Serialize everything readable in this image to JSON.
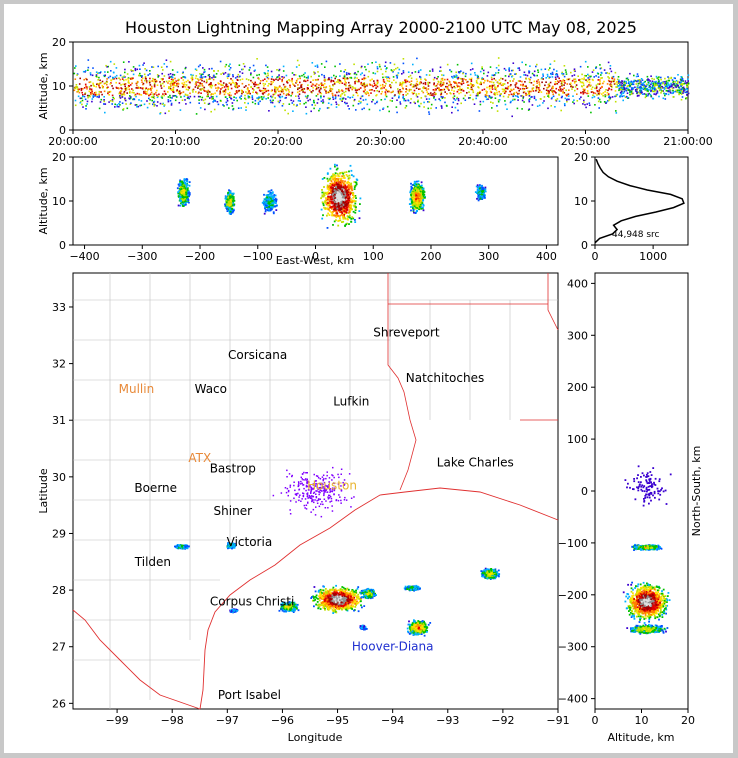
{
  "title": "Houston Lightning Mapping Array 2000-2100 UTC May 08, 2025",
  "chart_data": [
    {
      "type": "heatmap",
      "panel": "altitude-time",
      "ylabel": "Altitude, km",
      "ylim": [
        0,
        20
      ],
      "yticks": [
        "0",
        "10",
        "20"
      ],
      "xticks": [
        "20:00:00",
        "20:10:00",
        "20:20:00",
        "20:30:00",
        "20:40:00",
        "20:50:00",
        "21:00:00"
      ],
      "xlim_minutes": [
        0,
        60
      ],
      "activity": [
        {
          "t_start": 0,
          "t_end": 53,
          "z_low": 4,
          "z_high": 16,
          "core_low": 8,
          "core_high": 12
        },
        {
          "t_start": 53,
          "t_end": 60,
          "z_low": 7,
          "z_high": 13,
          "core_low": 0,
          "core_high": 0
        }
      ]
    },
    {
      "type": "heatmap",
      "panel": "altitude-eastwest",
      "xlabel": "East-West, km",
      "ylabel": "Altitude, km",
      "xlim": [
        -420,
        420
      ],
      "ylim": [
        0,
        20
      ],
      "xticks": [
        "−400",
        "−300",
        "−200",
        "−100",
        "0",
        "100",
        "200",
        "300",
        "400"
      ],
      "yticks": [
        "0",
        "10",
        "20"
      ],
      "cells": [
        {
          "x": -230,
          "z": 12,
          "w": 12,
          "h": 4,
          "level": 2
        },
        {
          "x": -150,
          "z": 10,
          "w": 10,
          "h": 3,
          "level": 2
        },
        {
          "x": -80,
          "z": 10,
          "w": 14,
          "h": 3,
          "level": 1
        },
        {
          "x": 40,
          "z": 11,
          "w": 40,
          "h": 8,
          "level": 5
        },
        {
          "x": 175,
          "z": 11,
          "w": 16,
          "h": 4,
          "level": 3
        },
        {
          "x": 285,
          "z": 12,
          "w": 10,
          "h": 2,
          "level": 1
        }
      ]
    },
    {
      "type": "line",
      "panel": "altitude-histogram",
      "xlim": [
        0,
        1600
      ],
      "ylim": [
        0,
        20
      ],
      "xticks": [
        "0",
        "1000"
      ],
      "yticks": [
        "0",
        "10",
        "20"
      ],
      "annotation": "44,948 src",
      "points": [
        [
          0,
          0.5
        ],
        [
          80,
          1.5
        ],
        [
          300,
          2.5
        ],
        [
          380,
          3.5
        ],
        [
          320,
          4.5
        ],
        [
          450,
          5.5
        ],
        [
          700,
          6.5
        ],
        [
          1050,
          7.5
        ],
        [
          1350,
          8.5
        ],
        [
          1530,
          9.5
        ],
        [
          1500,
          10.5
        ],
        [
          1300,
          11.5
        ],
        [
          900,
          12.5
        ],
        [
          600,
          13.5
        ],
        [
          380,
          14.5
        ],
        [
          230,
          15.5
        ],
        [
          140,
          16.5
        ],
        [
          90,
          17.5
        ],
        [
          50,
          18.5
        ],
        [
          20,
          19.5
        ]
      ]
    },
    {
      "type": "map",
      "panel": "plan-view",
      "xlabel": "Longitude",
      "ylabel": "Latitude",
      "xlim": [
        -99.8,
        -91
      ],
      "ylim": [
        25.9,
        33.6
      ],
      "xticks": [
        "−99",
        "−98",
        "−97",
        "−96",
        "−95",
        "−94",
        "−93",
        "−92",
        "−91"
      ],
      "yticks": [
        "26",
        "27",
        "28",
        "29",
        "30",
        "31",
        "32",
        "33"
      ],
      "places": [
        {
          "name": "Shreveport",
          "lon": -93.75,
          "lat": 32.55,
          "color": "#000000"
        },
        {
          "name": "Corsicana",
          "lon": -96.45,
          "lat": 32.15,
          "color": "#000000"
        },
        {
          "name": "Natchitoches",
          "lon": -93.05,
          "lat": 31.75,
          "color": "#000000"
        },
        {
          "name": "Mullin",
          "lon": -98.65,
          "lat": 31.55,
          "color": "#e88a3a"
        },
        {
          "name": "Waco",
          "lon": -97.3,
          "lat": 31.55,
          "color": "#000000"
        },
        {
          "name": "Lufkin",
          "lon": -94.75,
          "lat": 31.33,
          "color": "#000000"
        },
        {
          "name": "Lake Charles",
          "lon": -92.5,
          "lat": 30.25,
          "color": "#000000"
        },
        {
          "name": "ATX",
          "lon": -97.5,
          "lat": 30.33,
          "color": "#e88a3a"
        },
        {
          "name": "Bastrop",
          "lon": -96.9,
          "lat": 30.15,
          "color": "#000000"
        },
        {
          "name": "Houston",
          "lon": -95.1,
          "lat": 29.85,
          "color": "#e8b430"
        },
        {
          "name": "Boerne",
          "lon": -98.3,
          "lat": 29.8,
          "color": "#000000"
        },
        {
          "name": "Shiner",
          "lon": -96.9,
          "lat": 29.4,
          "color": "#000000"
        },
        {
          "name": "Victoria",
          "lon": -96.6,
          "lat": 28.85,
          "color": "#000000"
        },
        {
          "name": "Tilden",
          "lon": -98.35,
          "lat": 28.5,
          "color": "#000000"
        },
        {
          "name": "Corpus Christi",
          "lon": -96.55,
          "lat": 27.8,
          "color": "#000000"
        },
        {
          "name": "Hoover-Diana",
          "lon": -94.0,
          "lat": 27.0,
          "color": "#2030d0"
        },
        {
          "name": "Port Isabel",
          "lon": -96.6,
          "lat": 26.15,
          "color": "#000000"
        }
      ],
      "storms": [
        {
          "lon": -95.0,
          "lat": 27.85,
          "level": 5,
          "w": 1.1,
          "h": 0.55
        },
        {
          "lon": -93.55,
          "lat": 27.35,
          "level": 3,
          "w": 0.45,
          "h": 0.3
        },
        {
          "lon": -92.25,
          "lat": 28.3,
          "level": 2,
          "w": 0.4,
          "h": 0.22
        },
        {
          "lon": -95.9,
          "lat": 27.72,
          "level": 2,
          "w": 0.4,
          "h": 0.2
        },
        {
          "lon": -94.45,
          "lat": 27.95,
          "level": 2,
          "w": 0.3,
          "h": 0.2
        },
        {
          "lon": -93.65,
          "lat": 28.05,
          "level": 1,
          "w": 0.35,
          "h": 0.1
        },
        {
          "lon": -97.85,
          "lat": 28.78,
          "level": 1,
          "w": 0.3,
          "h": 0.08
        },
        {
          "lon": -96.95,
          "lat": 28.8,
          "level": 1,
          "w": 0.2,
          "h": 0.12
        },
        {
          "lon": -96.9,
          "lat": 27.65,
          "level": 0,
          "w": 0.2,
          "h": 0.08
        },
        {
          "lon": -94.55,
          "lat": 27.35,
          "level": 0,
          "w": 0.15,
          "h": 0.1
        }
      ]
    },
    {
      "type": "heatmap",
      "panel": "northsouth-altitude",
      "xlabel": "Altitude, km",
      "ylabel": "North-South, km",
      "xlim": [
        0,
        20
      ],
      "ylim": [
        -420,
        420
      ],
      "xticks": [
        "0",
        "10",
        "20"
      ],
      "yticks": [
        "400",
        "300",
        "200",
        "100",
        "0",
        "−100",
        "−200",
        "−300",
        "−400"
      ],
      "cells": [
        {
          "z": 11,
          "y": -212,
          "w": 8,
          "h": 42,
          "level": 5
        },
        {
          "z": 11,
          "y": -107,
          "w": 6,
          "h": 6,
          "level": 2
        },
        {
          "z": 11,
          "y": -265,
          "w": 7,
          "h": 10,
          "level": 2
        },
        {
          "z": 11,
          "y": 10,
          "w": 9,
          "h": 50,
          "level": 0
        }
      ]
    }
  ]
}
